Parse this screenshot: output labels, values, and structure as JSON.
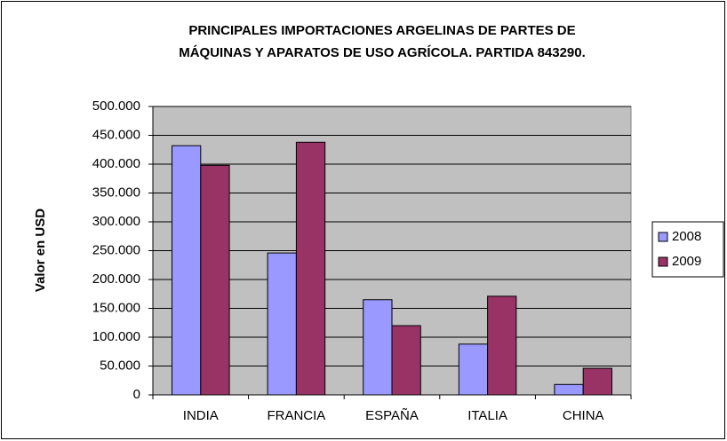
{
  "chart_data": {
    "type": "bar",
    "title": [
      "PRINCIPALES IMPORTACIONES ARGELINAS DE PARTES DE",
      "MÁQUINAS Y APARATOS DE USO AGRÍCOLA. PARTIDA 843290."
    ],
    "y_label": "Valor en USD",
    "categories": [
      "INDIA",
      "FRANCIA",
      "ESPAÑA",
      "ITALIA",
      "CHINA"
    ],
    "series": [
      {
        "name": "2008",
        "color": "#9999ff",
        "values": [
          432000,
          246000,
          165000,
          88000,
          18000
        ]
      },
      {
        "name": "2009",
        "color": "#993366",
        "values": [
          398000,
          438000,
          120000,
          171000,
          46000
        ]
      }
    ],
    "ylim": [
      0,
      500000
    ],
    "yticks": [
      0,
      {
        "value": 50000,
        "label": "50.000"
      },
      {
        "value": 100000,
        "label": "100.000"
      },
      {
        "value": 150000,
        "label": "150.000"
      },
      {
        "value": 200000,
        "label": "200.000"
      },
      {
        "value": 250000,
        "label": "250.000"
      },
      {
        "value": 300000,
        "label": "300.000"
      },
      {
        "value": 350000,
        "label": "350.000"
      },
      {
        "value": 400000,
        "label": "400.000"
      },
      {
        "value": 450000,
        "label": "450.000"
      },
      {
        "value": 500000,
        "label": "500.000"
      }
    ],
    "grid": true,
    "legend": "right"
  }
}
